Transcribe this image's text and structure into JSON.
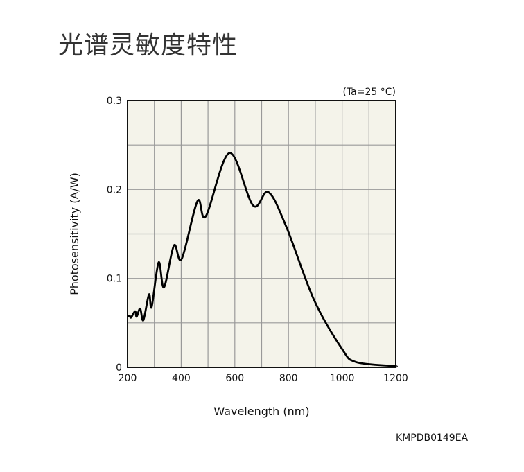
{
  "title": "光谱灵敏度特性",
  "figure_code": "KMPDB0149EA",
  "chart_data": {
    "type": "line",
    "title": "光谱灵敏度特性",
    "annotation": "(Ta=25 °C)",
    "xlabel": "Wavelength (nm)",
    "ylabel": "Photosensitivity (A/W)",
    "xlim": [
      200,
      1200
    ],
    "ylim": [
      0,
      0.3
    ],
    "xticks": [
      "200",
      "400",
      "600",
      "800",
      "1000",
      "1200"
    ],
    "yticks": [
      "0",
      "0.1",
      "0.2",
      "0.3"
    ],
    "grid": true,
    "series": [
      {
        "name": "Photosensitivity",
        "x": [
          200,
          208,
          213,
          228,
          234,
          247,
          259,
          280,
          290,
          316,
          336,
          373,
          402,
          461,
          492,
          580,
          668,
          725,
          792,
          895,
          999,
          1051,
          1190,
          1200
        ],
        "y": [
          0.057,
          0.058,
          0.056,
          0.063,
          0.057,
          0.066,
          0.053,
          0.082,
          0.068,
          0.118,
          0.09,
          0.137,
          0.122,
          0.187,
          0.17,
          0.241,
          0.182,
          0.197,
          0.158,
          0.076,
          0.021,
          0.006,
          0.0015,
          0.001
        ]
      }
    ]
  }
}
